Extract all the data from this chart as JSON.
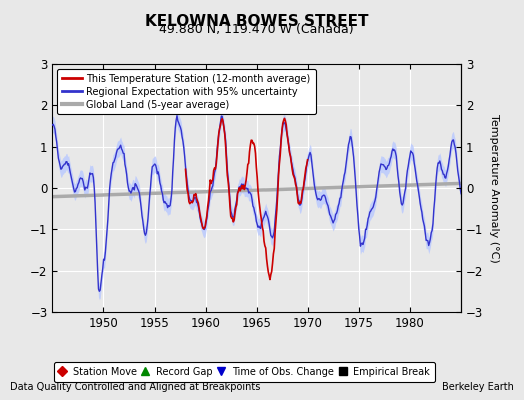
{
  "title": "KELOWNA BOWES STREET",
  "subtitle": "49.880 N, 119.470 W (Canada)",
  "ylabel": "Temperature Anomaly (°C)",
  "xlabel_note": "Data Quality Controlled and Aligned at Breakpoints",
  "credit": "Berkeley Earth",
  "ylim": [
    -3,
    3
  ],
  "xlim": [
    1945,
    1985
  ],
  "xticks": [
    1950,
    1955,
    1960,
    1965,
    1970,
    1975,
    1980
  ],
  "yticks": [
    -3,
    -2,
    -1,
    0,
    1,
    2,
    3
  ],
  "bg_color": "#e8e8e8",
  "plot_bg_color": "#e8e8e8",
  "grid_color": "#ffffff",
  "station_color": "#cc0000",
  "regional_color": "#3333cc",
  "regional_fill_color": "#b8c8ff",
  "global_color": "#aaaaaa",
  "figsize": [
    5.24,
    4.0
  ],
  "dpi": 100
}
